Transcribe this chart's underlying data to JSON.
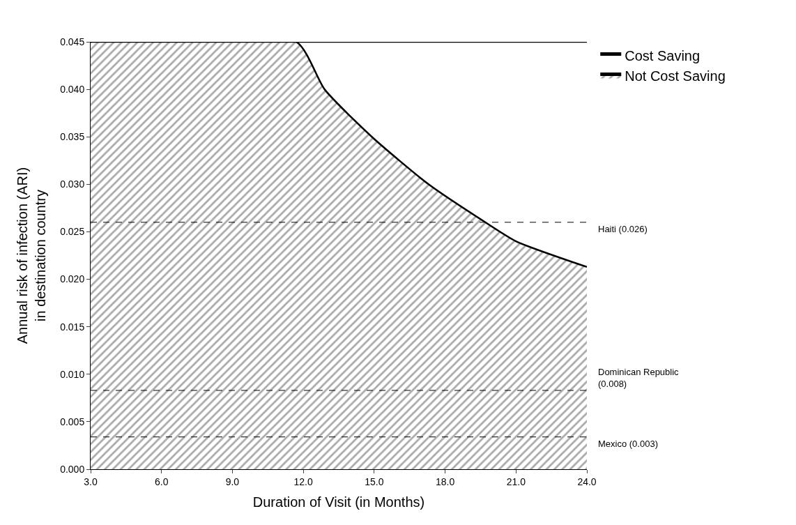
{
  "chart_data": {
    "type": "area",
    "xlabel": "Duration of Visit (in Months)",
    "ylabel": "Annual risk of infection (ARI)\nin destination country",
    "x": [
      3,
      11.7,
      12.9,
      14.9,
      17.3,
      19.7,
      21.0,
      24.0
    ],
    "series": [
      {
        "name": "Not Cost Saving",
        "color": "#555555",
        "values": [
          0.045,
          0.045,
          0.04,
          0.035,
          0.03,
          0.026,
          0.024,
          0.0213
        ]
      },
      {
        "name": "Cost Saving",
        "color": "#ffffff",
        "values": [
          0.045,
          0.045,
          0.045,
          0.045,
          0.045,
          0.045,
          0.045,
          0.045
        ]
      }
    ],
    "xlim": [
      3,
      24
    ],
    "xticks": [
      {
        "value": 3,
        "label": "3.0"
      },
      {
        "value": 6,
        "label": "6.0"
      },
      {
        "value": 9,
        "label": "9.0"
      },
      {
        "value": 12,
        "label": "12.0"
      },
      {
        "value": 15,
        "label": "15.0"
      },
      {
        "value": 18,
        "label": "18.0"
      },
      {
        "value": 21,
        "label": "21.0"
      },
      {
        "value": 24,
        "label": "24.0"
      }
    ],
    "ylim": [
      0,
      0.045
    ],
    "yticks": [
      {
        "value": 0,
        "label": "0.000"
      },
      0.005,
      {
        "value": 0.01,
        "label": "0.010"
      },
      0.015,
      {
        "value": 0.02,
        "label": "0.020"
      },
      0.025,
      {
        "value": 0.03,
        "label": "0.030"
      },
      0.035,
      {
        "value": 0.04,
        "label": "0.040"
      },
      0.045
    ],
    "ref_lines": [
      {
        "axis": "y",
        "value": 0.026,
        "label": "Haiti (0.026)",
        "line_style": "dashed"
      },
      {
        "axis": "y",
        "value": 0.0083,
        "label": "Dominican Republic\n(0.008)",
        "line_style": "dashed"
      },
      {
        "axis": "y",
        "value": 0.0034,
        "label": "Mexico (0.003)",
        "line_style": "dashed"
      }
    ],
    "legend": "top right"
  }
}
